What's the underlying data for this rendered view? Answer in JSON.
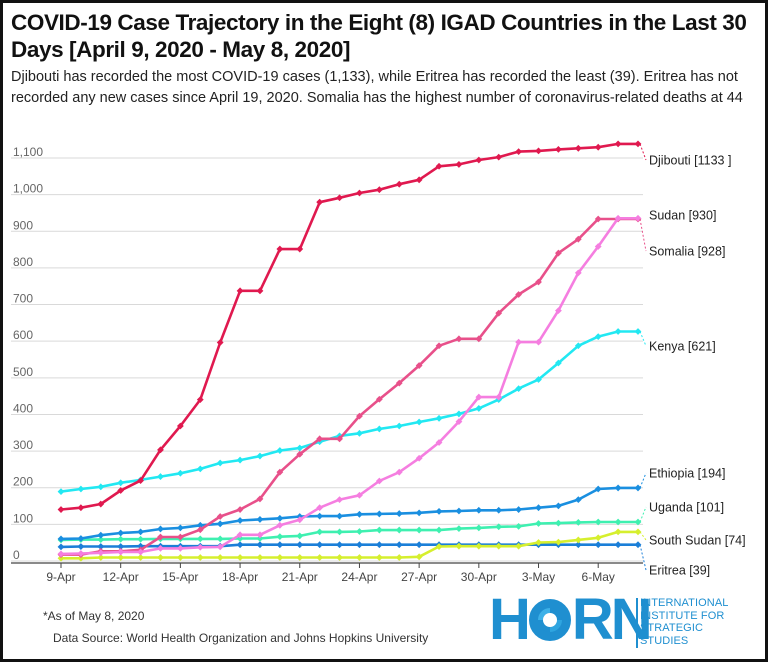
{
  "title": "COVID-19 Case Trajectory in the Eight (8) IGAD Countries in the Last 30 Days [April 9, 2020 - May 8, 2020]",
  "subtitle": "Djibouti has recorded the most COVID-19 cases (1,133), while Eritrea has recorded the least (39). Eritrea has not recorded any new cases since April 19, 2020. Somalia has the highest number of coronavirus-related deaths at 44",
  "footnote": "*As of May 8, 2020",
  "source": "Data Source: World Health Organization and Johns Hopkins University",
  "logo": {
    "word_a": "H",
    "word_b": "RN",
    "subtitle_lines": [
      "INTERNATIONAL",
      "INSTITUTE FOR",
      "STRATEGIC",
      "STUDIES"
    ]
  },
  "chart_data": {
    "type": "line",
    "x": [
      "9-Apr",
      "10-Apr",
      "11-Apr",
      "12-Apr",
      "13-Apr",
      "14-Apr",
      "15-Apr",
      "16-Apr",
      "17-Apr",
      "18-Apr",
      "19-Apr",
      "20-Apr",
      "21-Apr",
      "22-Apr",
      "23-Apr",
      "24-Apr",
      "25-Apr",
      "26-Apr",
      "27-Apr",
      "28-Apr",
      "29-Apr",
      "30-Apr",
      "1-May",
      "2-May",
      "3-May",
      "4-May",
      "5-May",
      "6-May",
      "7-May",
      "8-May"
    ],
    "x_tick_labels": [
      "9-Apr",
      "12-Apr",
      "15-Apr",
      "18-Apr",
      "21-Apr",
      "24-Apr",
      "27-Apr",
      "30-Apr",
      "3-May",
      "6-May"
    ],
    "ylim": [
      0,
      1100
    ],
    "y_ticks": [
      0,
      100,
      200,
      300,
      400,
      500,
      600,
      700,
      800,
      900,
      1000,
      1100
    ],
    "y_tick_labels": [
      "0",
      "100",
      "200",
      "300",
      "400",
      "500",
      "600",
      "700",
      "800",
      "900",
      "1,000",
      "1,100"
    ],
    "grid": true,
    "series": [
      {
        "name": "Djibouti",
        "end_label": "Djibouti [1133 ]",
        "color": "#e0194f",
        "values": [
          135,
          140,
          150,
          187,
          214,
          298,
          363,
          435,
          591,
          732,
          732,
          846,
          846,
          974,
          986,
          999,
          1008,
          1023,
          1035,
          1072,
          1077,
          1089,
          1097,
          1112,
          1114,
          1118,
          1121,
          1124,
          1133,
          1133
        ]
      },
      {
        "name": "Sudan",
        "end_label": "Sudan [930]",
        "color": "#f57ee0",
        "values": [
          14,
          15,
          17,
          19,
          19,
          29,
          29,
          32,
          33,
          66,
          66,
          92,
          107,
          140,
          162,
          174,
          213,
          237,
          275,
          318,
          375,
          442,
          442,
          592,
          592,
          678,
          781,
          853,
          930,
          930
        ]
      },
      {
        "name": "Somalia",
        "end_label": "Somalia [928]",
        "color": "#e8508a",
        "values": [
          12,
          12,
          21,
          21,
          25,
          60,
          60,
          80,
          116,
          135,
          164,
          237,
          286,
          328,
          328,
          390,
          436,
          480,
          528,
          582,
          601,
          601,
          671,
          722,
          756,
          835,
          873,
          928,
          928,
          928
        ]
      },
      {
        "name": "Kenya",
        "end_label": "Kenya [621]",
        "color": "#22e8f2",
        "values": [
          184,
          191,
          197,
          208,
          216,
          225,
          234,
          246,
          262,
          270,
          281,
          296,
          303,
          320,
          336,
          343,
          355,
          363,
          374,
          384,
          396,
          411,
          435,
          465,
          490,
          535,
          582,
          607,
          621,
          621
        ]
      },
      {
        "name": "Ethiopia",
        "end_label": "Ethiopia [194]",
        "color": "#1a8fe0",
        "values": [
          55,
          56,
          65,
          71,
          74,
          82,
          85,
          92,
          96,
          105,
          108,
          111,
          116,
          117,
          117,
          122,
          123,
          124,
          126,
          130,
          131,
          133,
          133,
          135,
          140,
          145,
          162,
          191,
          194,
          194
        ]
      },
      {
        "name": "Uganda",
        "end_label": "Uganda [101]",
        "color": "#3ef0b0",
        "values": [
          52,
          53,
          53,
          54,
          54,
          55,
          55,
          55,
          55,
          56,
          56,
          61,
          63,
          74,
          74,
          75,
          79,
          79,
          79,
          79,
          83,
          85,
          88,
          89,
          97,
          98,
          100,
          101,
          101,
          101
        ]
      },
      {
        "name": "South Sudan",
        "end_label": "South Sudan [74]",
        "color": "#d6ef2e",
        "values": [
          2,
          2,
          4,
          4,
          4,
          4,
          4,
          4,
          4,
          4,
          4,
          4,
          4,
          4,
          4,
          4,
          4,
          4,
          6,
          34,
          35,
          35,
          35,
          35,
          45,
          46,
          52,
          58,
          74,
          74
        ]
      },
      {
        "name": "Eritrea",
        "end_label": "Eritrea [39]",
        "color": "#1b7fd8",
        "values": [
          33,
          34,
          34,
          34,
          35,
          35,
          35,
          35,
          35,
          39,
          39,
          39,
          39,
          39,
          39,
          39,
          39,
          39,
          39,
          39,
          39,
          39,
          39,
          39,
          39,
          39,
          39,
          39,
          39,
          39
        ]
      }
    ]
  }
}
